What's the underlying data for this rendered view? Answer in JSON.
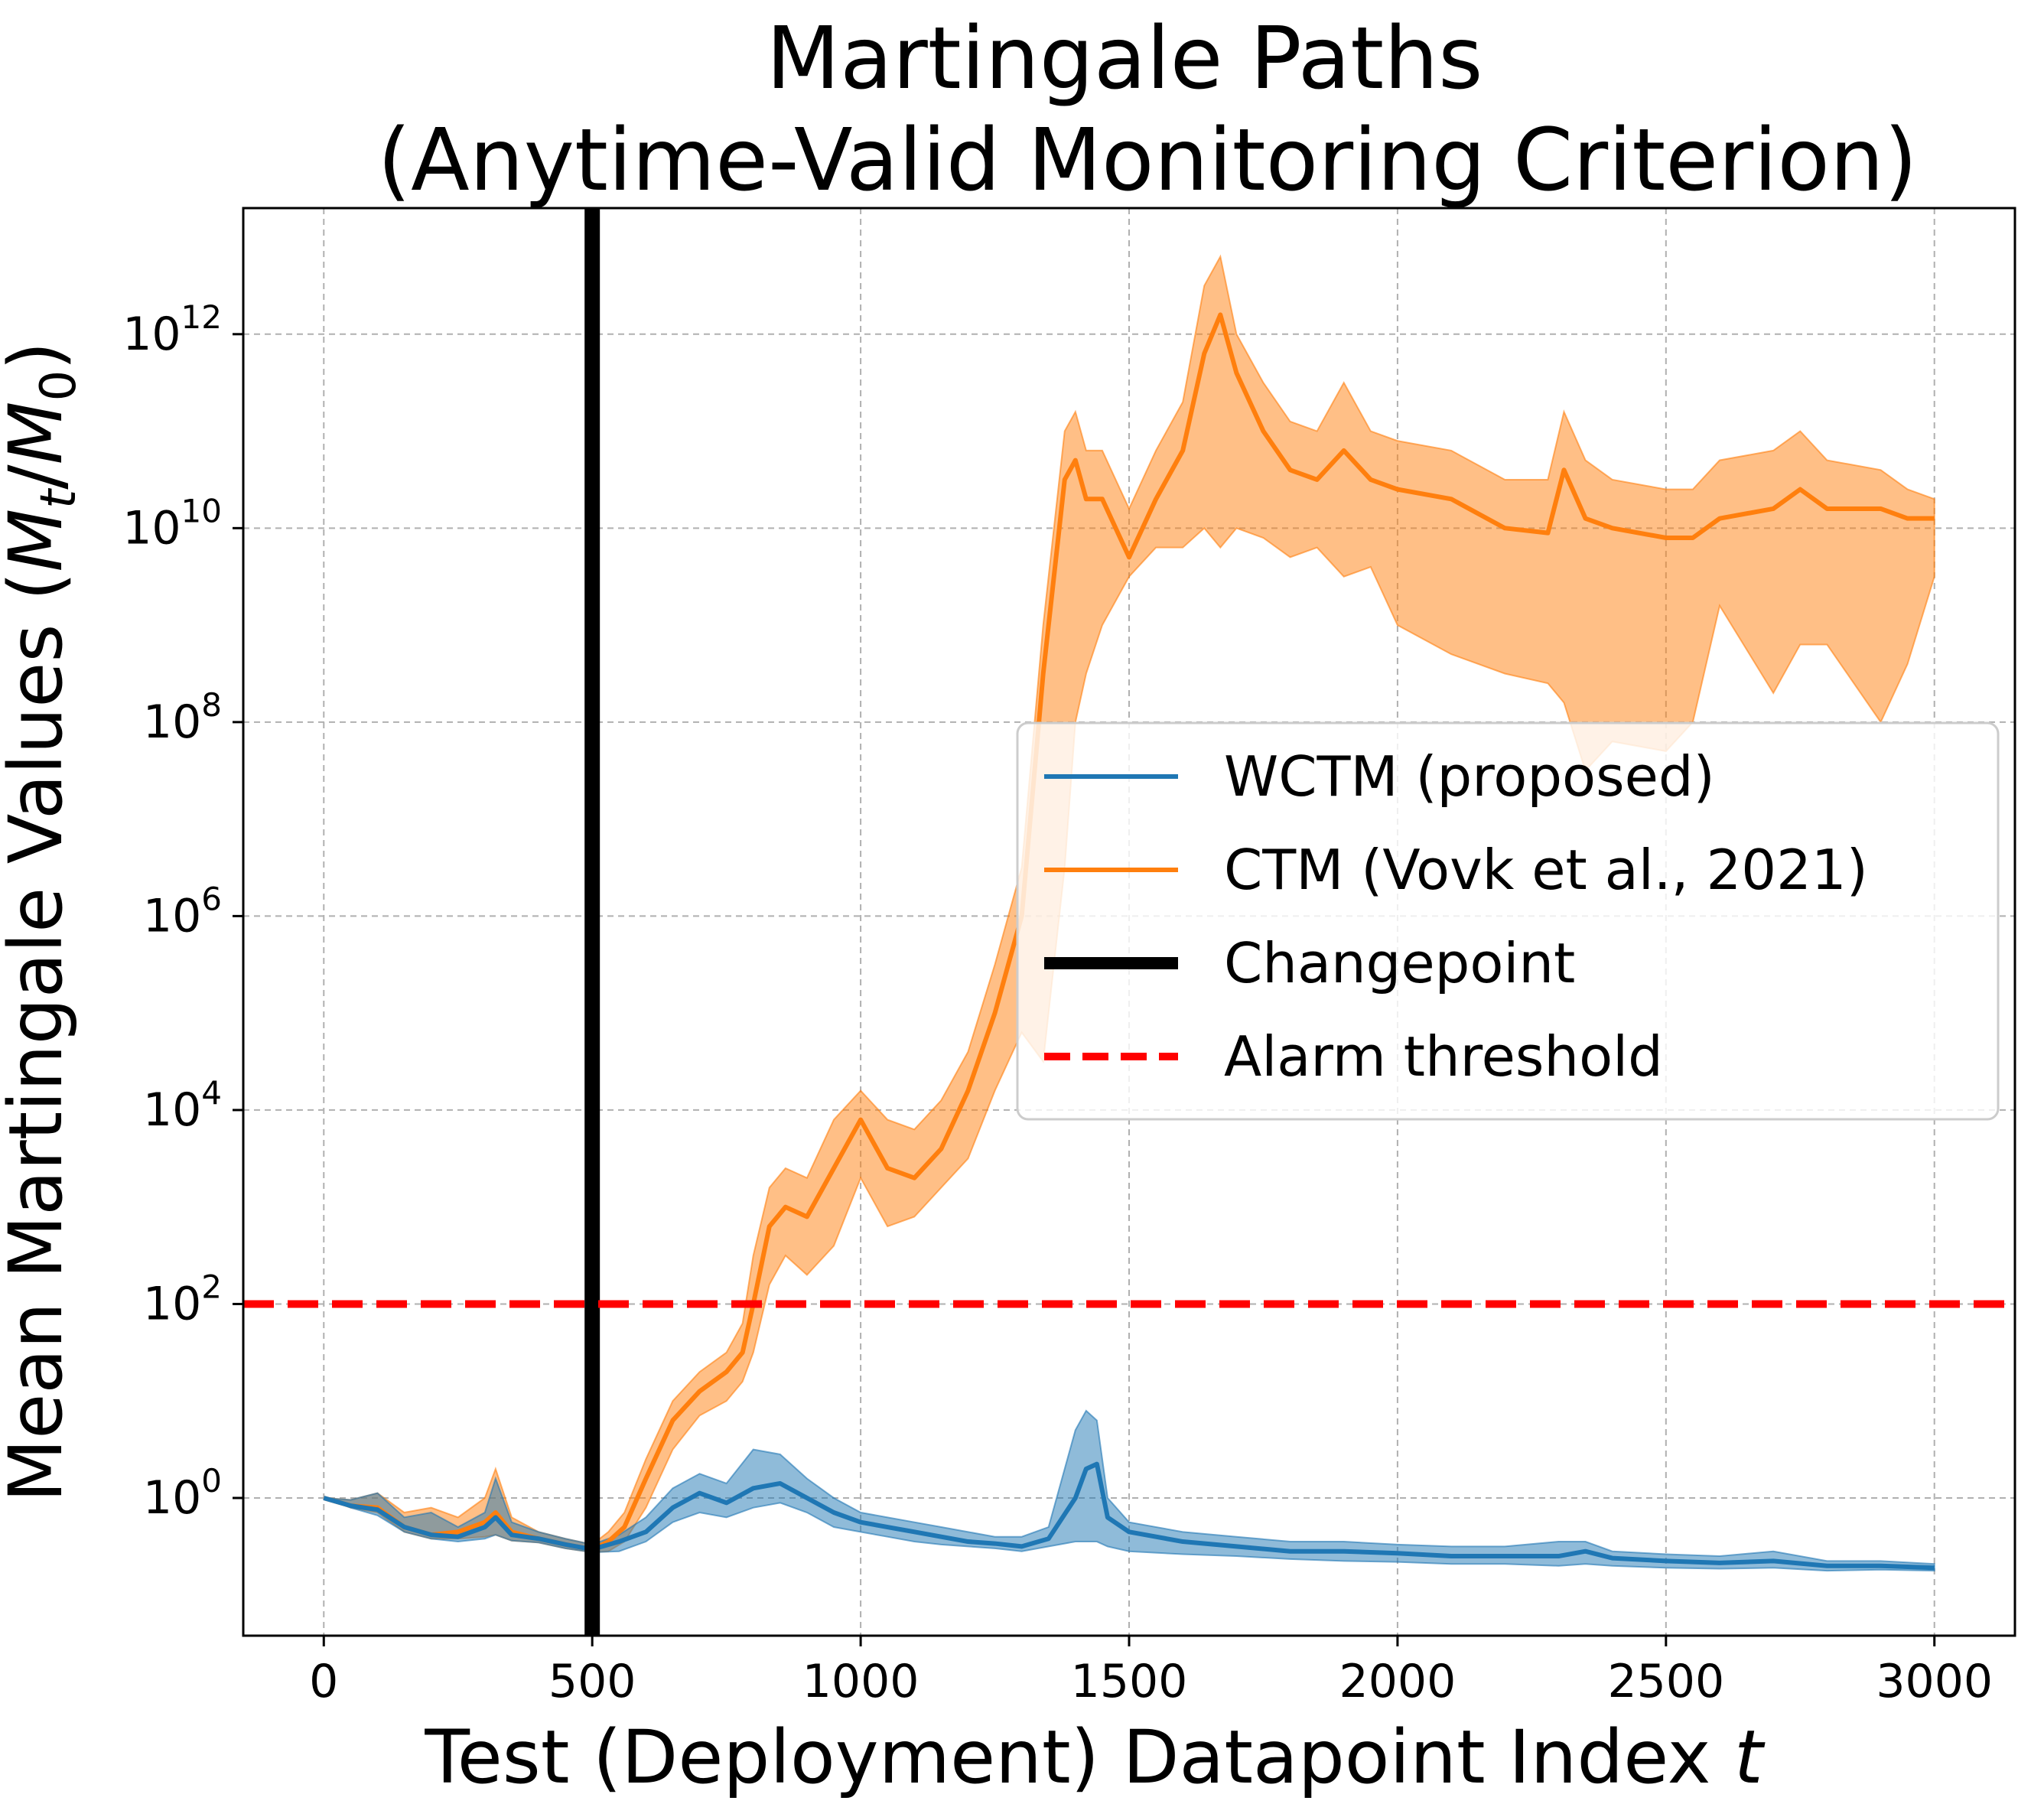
{
  "chart_data": {
    "type": "line",
    "title": [
      "Martingale Paths",
      "(Anytime-Valid Monitoring Criterion)"
    ],
    "xlabel": "Test (Deployment) Datapoint Index",
    "xlabel_var": "t",
    "ylabel": "Mean Martingale Values",
    "ylabel_math": {
      "open": "(",
      "M": "M",
      "t_sub": "t",
      "slash": "/",
      "M0": "M",
      "zero_sub": "0",
      "close": ")"
    },
    "x_ticks": [
      0,
      500,
      1000,
      1500,
      2000,
      2500,
      3000
    ],
    "y_ticks": [
      {
        "exp": 0,
        "base": "10",
        "sup": "0"
      },
      {
        "exp": 2,
        "base": "10",
        "sup": "2"
      },
      {
        "exp": 4,
        "base": "10",
        "sup": "4"
      },
      {
        "exp": 6,
        "base": "10",
        "sup": "6"
      },
      {
        "exp": 8,
        "base": "10",
        "sup": "8"
      },
      {
        "exp": 10,
        "base": "10",
        "sup": "10"
      },
      {
        "exp": 12,
        "base": "10",
        "sup": "12"
      }
    ],
    "xlim": [
      -150,
      3150
    ],
    "ylim_log10": [
      -1.42,
      13.3
    ],
    "y_scale": "log",
    "grid": true,
    "legend_position": "center-right",
    "changepoint_x": 500,
    "alarm_threshold": 100,
    "series": [
      {
        "name": "WCTM (proposed)",
        "color": "#1f77b4",
        "x": [
          0,
          50,
          100,
          150,
          200,
          250,
          300,
          320,
          350,
          400,
          450,
          500,
          550,
          600,
          650,
          700,
          750,
          800,
          850,
          900,
          950,
          1000,
          1050,
          1100,
          1150,
          1200,
          1250,
          1300,
          1350,
          1400,
          1420,
          1440,
          1460,
          1500,
          1600,
          1700,
          1800,
          1900,
          2000,
          2100,
          2200,
          2300,
          2350,
          2400,
          2500,
          2600,
          2700,
          2800,
          2900,
          3000
        ],
        "log10_mean": [
          0,
          -0.08,
          -0.12,
          -0.3,
          -0.38,
          -0.4,
          -0.3,
          -0.2,
          -0.38,
          -0.42,
          -0.48,
          -0.53,
          -0.45,
          -0.35,
          -0.1,
          0.05,
          -0.05,
          0.1,
          0.15,
          0.0,
          -0.15,
          -0.25,
          -0.3,
          -0.35,
          -0.4,
          -0.45,
          -0.47,
          -0.5,
          -0.42,
          0.0,
          0.3,
          0.35,
          -0.2,
          -0.35,
          -0.45,
          -0.5,
          -0.55,
          -0.55,
          -0.57,
          -0.6,
          -0.6,
          -0.6,
          -0.55,
          -0.62,
          -0.65,
          -0.67,
          -0.65,
          -0.7,
          -0.7,
          -0.72
        ],
        "log10_lower": [
          0,
          -0.1,
          -0.18,
          -0.35,
          -0.42,
          -0.45,
          -0.42,
          -0.38,
          -0.44,
          -0.46,
          -0.52,
          -0.56,
          -0.55,
          -0.45,
          -0.25,
          -0.15,
          -0.2,
          -0.1,
          -0.05,
          -0.15,
          -0.3,
          -0.35,
          -0.4,
          -0.45,
          -0.48,
          -0.5,
          -0.52,
          -0.55,
          -0.5,
          -0.45,
          -0.45,
          -0.45,
          -0.5,
          -0.55,
          -0.58,
          -0.6,
          -0.63,
          -0.65,
          -0.66,
          -0.68,
          -0.68,
          -0.7,
          -0.68,
          -0.7,
          -0.72,
          -0.73,
          -0.72,
          -0.75,
          -0.74,
          -0.75
        ],
        "log10_upper": [
          0,
          -0.02,
          0.05,
          -0.2,
          -0.15,
          -0.3,
          -0.15,
          0.2,
          -0.25,
          -0.35,
          -0.42,
          -0.48,
          -0.38,
          -0.2,
          0.1,
          0.25,
          0.15,
          0.5,
          0.45,
          0.2,
          0.0,
          -0.15,
          -0.2,
          -0.25,
          -0.3,
          -0.35,
          -0.4,
          -0.4,
          -0.3,
          0.7,
          0.9,
          0.8,
          0.0,
          -0.25,
          -0.35,
          -0.4,
          -0.45,
          -0.45,
          -0.48,
          -0.5,
          -0.5,
          -0.45,
          -0.45,
          -0.55,
          -0.58,
          -0.6,
          -0.55,
          -0.65,
          -0.65,
          -0.68
        ]
      },
      {
        "name": "CTM (Vovk et al., 2021)",
        "color": "#ff7f0e",
        "x": [
          0,
          50,
          100,
          150,
          200,
          250,
          300,
          320,
          350,
          400,
          450,
          500,
          530,
          560,
          600,
          650,
          700,
          750,
          780,
          800,
          830,
          860,
          900,
          950,
          1000,
          1050,
          1100,
          1150,
          1200,
          1250,
          1300,
          1340,
          1380,
          1400,
          1420,
          1450,
          1500,
          1550,
          1600,
          1640,
          1670,
          1700,
          1750,
          1800,
          1850,
          1900,
          1950,
          2000,
          2100,
          2200,
          2280,
          2310,
          2350,
          2400,
          2500,
          2550,
          2600,
          2700,
          2750,
          2800,
          2900,
          2950,
          3000
        ],
        "log10_mean": [
          0,
          -0.08,
          -0.1,
          -0.3,
          -0.38,
          -0.35,
          -0.25,
          -0.15,
          -0.35,
          -0.42,
          -0.48,
          -0.53,
          -0.45,
          -0.3,
          0.2,
          0.8,
          1.1,
          1.3,
          1.5,
          2.0,
          2.8,
          3.0,
          2.9,
          3.4,
          3.9,
          3.4,
          3.3,
          3.6,
          4.2,
          5.0,
          6.0,
          8.5,
          10.5,
          10.7,
          10.3,
          10.3,
          9.7,
          10.3,
          10.8,
          11.8,
          12.2,
          11.6,
          11.0,
          10.6,
          10.5,
          10.8,
          10.5,
          10.4,
          10.3,
          10.0,
          9.95,
          10.6,
          10.1,
          10.0,
          9.9,
          9.9,
          10.1,
          10.2,
          10.4,
          10.2,
          10.2,
          10.1,
          10.1
        ],
        "log10_lower": [
          0,
          -0.1,
          -0.15,
          -0.35,
          -0.42,
          -0.42,
          -0.4,
          -0.38,
          -0.44,
          -0.46,
          -0.52,
          -0.56,
          -0.55,
          -0.45,
          -0.1,
          0.5,
          0.85,
          1.0,
          1.2,
          1.5,
          2.2,
          2.5,
          2.3,
          2.6,
          3.3,
          2.8,
          2.9,
          3.2,
          3.5,
          4.2,
          4.8,
          4.5,
          6.5,
          8.0,
          8.5,
          9.0,
          9.5,
          9.8,
          9.8,
          10.0,
          9.8,
          10.0,
          9.9,
          9.7,
          9.8,
          9.5,
          9.6,
          9.0,
          8.7,
          8.5,
          8.4,
          8.2,
          7.5,
          7.8,
          7.7,
          8.0,
          9.2,
          8.3,
          8.8,
          8.8,
          8.0,
          8.6,
          9.5
        ],
        "log10_upper": [
          0,
          -0.02,
          0.05,
          -0.15,
          -0.1,
          -0.2,
          0.0,
          0.3,
          -0.2,
          -0.35,
          -0.42,
          -0.48,
          -0.35,
          -0.15,
          0.4,
          1.0,
          1.3,
          1.5,
          1.8,
          2.5,
          3.2,
          3.4,
          3.3,
          3.9,
          4.2,
          3.9,
          3.8,
          4.1,
          4.6,
          5.5,
          6.5,
          9.0,
          11.0,
          11.2,
          10.8,
          10.8,
          10.2,
          10.8,
          11.3,
          12.5,
          12.8,
          12.0,
          11.5,
          11.1,
          11.0,
          11.5,
          11.0,
          10.9,
          10.8,
          10.5,
          10.5,
          11.2,
          10.7,
          10.5,
          10.4,
          10.4,
          10.7,
          10.8,
          11.0,
          10.7,
          10.6,
          10.4,
          10.3
        ]
      }
    ],
    "legend": [
      {
        "label": "WCTM (proposed)",
        "color": "#1f77b4",
        "style": "solid-thin"
      },
      {
        "label": "CTM (Vovk et al., 2021)",
        "color": "#ff7f0e",
        "style": "solid-thin"
      },
      {
        "label": "Changepoint",
        "color": "#000000",
        "style": "solid-thick"
      },
      {
        "label": "Alarm threshold",
        "color": "#ff0000",
        "style": "dashed"
      }
    ]
  }
}
